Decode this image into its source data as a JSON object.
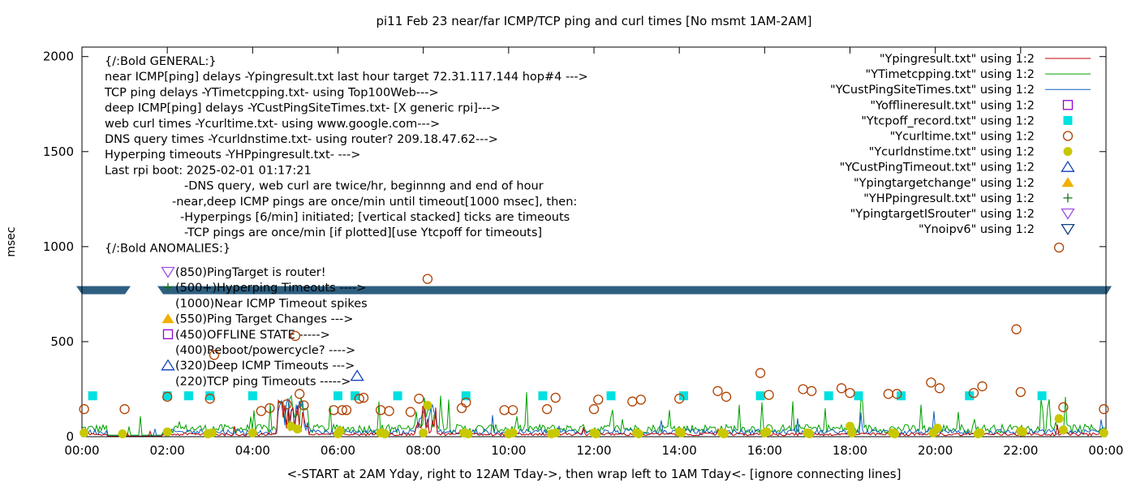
{
  "chart_data": {
    "type": "scatter",
    "title": "pi11 Feb 23  near/far ICMP/TCP ping and curl times [No msmt 1AM-2AM]",
    "xlabel": "<-START at 2AM Yday, right to 12AM Tday->, then wrap left to 1AM Tday<- [ignore connecting lines]",
    "ylabel": "msec",
    "xlim": [
      0,
      24
    ],
    "ylim": [
      0,
      2050
    ],
    "x_ticks": [
      "00:00",
      "02:00",
      "04:00",
      "06:00",
      "08:00",
      "10:00",
      "12:00",
      "14:00",
      "16:00",
      "18:00",
      "20:00",
      "22:00",
      "00:00"
    ],
    "y_ticks": [
      "0",
      "500",
      "1000",
      "1500",
      "2000"
    ],
    "y_tick_values": [
      0,
      500,
      1000,
      1500,
      2000
    ],
    "band_y": 775,
    "legend_placement": "top-right",
    "colors": {
      "ping": "#c00000",
      "tcp": "#00a000",
      "cust": "#1060c0",
      "offline": "#9400d3",
      "tcpoff": "#00e0e0",
      "curl": "#b04000",
      "dns": "#c8c800",
      "custtimeout": "#1040c0",
      "target": "#f0b000",
      "hping": "#107010",
      "router": "#a050e0",
      "noipv6": "#104080",
      "band": "#2e5f80"
    },
    "legend": [
      {
        "label": "\"Ypingresult.txt\" using 1:2",
        "marker": "line",
        "color": "#c00000"
      },
      {
        "label": "\"YTimetcpping.txt\" using 1:2",
        "marker": "line",
        "color": "#00a000"
      },
      {
        "label": "\"YCustPingSiteTimes.txt\" using 1:2",
        "marker": "line",
        "color": "#1060c0"
      },
      {
        "label": "\"Yofflineresult.txt\" using 1:2",
        "marker": "open-square",
        "color": "#9400d3"
      },
      {
        "label": "\"Ytcpoff_record.txt\" using 1:2",
        "marker": "filled-square",
        "color": "#00e0e0"
      },
      {
        "label": "\"Ycurltime.txt\" using 1:2",
        "marker": "open-circle",
        "color": "#b04000"
      },
      {
        "label": "\"Ycurldnstime.txt\" using 1:2",
        "marker": "filled-circle",
        "color": "#c8c800"
      },
      {
        "label": "\"YCustPingTimeout.txt\" using 1:2",
        "marker": "open-triangle",
        "color": "#1040c0"
      },
      {
        "label": "\"Ypingtargetchange\" using 1:2",
        "marker": "filled-triangle",
        "color": "#f0b000"
      },
      {
        "label": "\"YHPpingresult.txt\" using 1:2",
        "marker": "plus",
        "color": "#107010"
      },
      {
        "label": "\"YpingtargetISrouter\" using 1:2",
        "marker": "open-triangle-down",
        "color": "#a050e0"
      },
      {
        "label": "\"Ynoipv6\" using 1:2",
        "marker": "open-triangle-down",
        "color": "#104080"
      }
    ],
    "annotations": [
      "{/:Bold GENERAL:}",
      "near ICMP[ping] delays -Ypingresult.txt last hour target 72.31.117.144 hop#4 --->",
      "TCP ping delays -YTimetcpping.txt- using Top100Web--->",
      "deep ICMP[ping] delays -YCustPingSiteTimes.txt- [X generic rpi]--->",
      "web curl times -Ycurltime.txt- using www.google.com--->",
      "DNS query times -Ycurldnstime.txt- using router? 209.18.47.62--->",
      "Hyperping timeouts -YHPpingresult.txt- --->",
      "Last rpi boot: 2025-02-01 01:17:21",
      "-DNS query, web curl are twice/hr, beginnng and end of hour",
      "-near,deep ICMP pings are once/min until timeout[1000 msec], then:",
      "-Hyperpings [6/min] initiated; [vertical stacked] ticks are timeouts",
      "-TCP pings are once/min [if plotted][use Ytcpoff for timeouts]",
      "{/:Bold ANOMALIES:}"
    ],
    "anomalies": [
      {
        "label": "(850)PingTarget is router!",
        "marker": "open-triangle-down",
        "color": "#a050e0"
      },
      {
        "label": "(500+)Hyperping Timeouts ---->",
        "marker": "plus",
        "color": "#107010"
      },
      {
        "label": "(1000)Near ICMP Timeout spikes",
        "marker": "none",
        "color": "#000000"
      },
      {
        "label": "(550)Ping Target Changes --->",
        "marker": "filled-triangle",
        "color": "#f0b000"
      },
      {
        "label": "(450)OFFLINE STATE ----->",
        "marker": "open-square",
        "color": "#9400d3"
      },
      {
        "label": "(400)Reboot/powercycle? ---->",
        "marker": "none",
        "color": "#000000"
      },
      {
        "label": "(320)Deep ICMP Timeouts --->",
        "marker": "open-triangle",
        "color": "#1040c0"
      },
      {
        "label": "(220)TCP ping Timeouts ----->",
        "marker": "none",
        "color": "#000000"
      }
    ],
    "series": [
      {
        "name": "\"Ytcpoff_record.txt\" using 1:2",
        "marker": "filled-square",
        "points": [
          [
            0.25,
            215
          ],
          [
            2.0,
            215
          ],
          [
            2.5,
            215
          ],
          [
            3.0,
            215
          ],
          [
            4.0,
            215
          ],
          [
            6.0,
            215
          ],
          [
            6.4,
            215
          ],
          [
            7.4,
            215
          ],
          [
            9.0,
            215
          ],
          [
            10.8,
            215
          ],
          [
            12.4,
            215
          ],
          [
            14.1,
            215
          ],
          [
            15.9,
            215
          ],
          [
            17.5,
            215
          ],
          [
            18.2,
            215
          ],
          [
            19.2,
            215
          ],
          [
            20.8,
            215
          ],
          [
            22.5,
            215
          ]
        ]
      },
      {
        "name": "\"Ycurltime.txt\" using 1:2",
        "marker": "open-circle",
        "points": [
          [
            0.05,
            145
          ],
          [
            1.0,
            145
          ],
          [
            2.0,
            210
          ],
          [
            3.0,
            200
          ],
          [
            3.1,
            430
          ],
          [
            4.2,
            135
          ],
          [
            4.4,
            150
          ],
          [
            4.8,
            170
          ],
          [
            5.0,
            530
          ],
          [
            5.1,
            225
          ],
          [
            5.2,
            165
          ],
          [
            5.9,
            140
          ],
          [
            6.1,
            140
          ],
          [
            6.2,
            140
          ],
          [
            6.5,
            200
          ],
          [
            6.6,
            205
          ],
          [
            7.0,
            140
          ],
          [
            7.2,
            135
          ],
          [
            7.7,
            130
          ],
          [
            7.9,
            200
          ],
          [
            8.1,
            830
          ],
          [
            8.9,
            150
          ],
          [
            9.0,
            180
          ],
          [
            9.9,
            140
          ],
          [
            10.1,
            140
          ],
          [
            10.9,
            145
          ],
          [
            11.1,
            205
          ],
          [
            12.0,
            145
          ],
          [
            12.1,
            195
          ],
          [
            12.9,
            185
          ],
          [
            13.1,
            195
          ],
          [
            14.0,
            200
          ],
          [
            14.9,
            240
          ],
          [
            15.1,
            210
          ],
          [
            15.9,
            335
          ],
          [
            16.1,
            220
          ],
          [
            16.9,
            250
          ],
          [
            17.1,
            240
          ],
          [
            17.8,
            255
          ],
          [
            18.0,
            230
          ],
          [
            18.9,
            225
          ],
          [
            19.1,
            225
          ],
          [
            19.9,
            285
          ],
          [
            20.1,
            255
          ],
          [
            20.9,
            230
          ],
          [
            21.1,
            265
          ],
          [
            21.9,
            565
          ],
          [
            22.0,
            235
          ],
          [
            22.9,
            995
          ],
          [
            23.0,
            155
          ],
          [
            23.95,
            145
          ]
        ]
      },
      {
        "name": "\"Ycurldnstime.txt\" using 1:2",
        "marker": "filled-circle",
        "points": [
          [
            0.05,
            20
          ],
          [
            0.95,
            15
          ],
          [
            2.0,
            25
          ],
          [
            2.95,
            15
          ],
          [
            3.05,
            20
          ],
          [
            4.0,
            20
          ],
          [
            4.9,
            55
          ],
          [
            5.05,
            40
          ],
          [
            6.0,
            15
          ],
          [
            6.05,
            30
          ],
          [
            7.0,
            20
          ],
          [
            7.1,
            15
          ],
          [
            8.0,
            20
          ],
          [
            8.1,
            165
          ],
          [
            8.95,
            20
          ],
          [
            9.05,
            15
          ],
          [
            10.0,
            15
          ],
          [
            10.1,
            20
          ],
          [
            11.0,
            15
          ],
          [
            11.1,
            20
          ],
          [
            12.0,
            20
          ],
          [
            12.05,
            15
          ],
          [
            13.0,
            20
          ],
          [
            13.05,
            15
          ],
          [
            14.0,
            25
          ],
          [
            14.05,
            20
          ],
          [
            15.0,
            20
          ],
          [
            15.05,
            15
          ],
          [
            16.0,
            20
          ],
          [
            16.05,
            25
          ],
          [
            17.0,
            20
          ],
          [
            17.05,
            15
          ],
          [
            18.0,
            55
          ],
          [
            18.05,
            20
          ],
          [
            19.0,
            20
          ],
          [
            19.05,
            15
          ],
          [
            19.95,
            20
          ],
          [
            20.05,
            45
          ],
          [
            21.0,
            15
          ],
          [
            21.05,
            20
          ],
          [
            22.0,
            30
          ],
          [
            22.05,
            25
          ],
          [
            22.9,
            95
          ],
          [
            23.0,
            35
          ],
          [
            23.95,
            20
          ]
        ]
      },
      {
        "name": "\"YCustPingTimeout.txt\" using 1:2",
        "marker": "open-triangle",
        "points": [
          [
            6.45,
            320
          ]
        ]
      }
    ]
  }
}
